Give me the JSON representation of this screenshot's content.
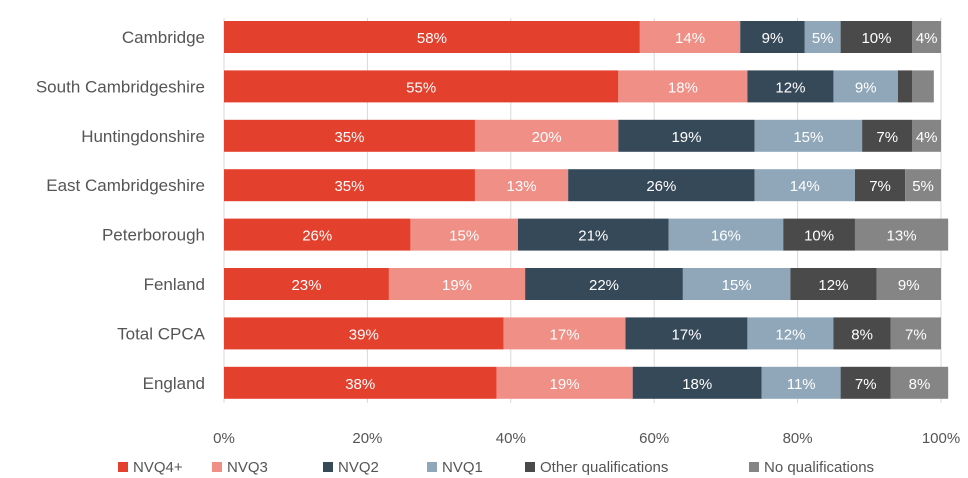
{
  "chart_data": {
    "type": "bar",
    "orientation": "horizontal",
    "stacked": true,
    "categories": [
      "Cambridge",
      "South Cambridgeshire",
      "Huntingdonshire",
      "East Cambridgeshire",
      "Peterborough",
      "Fenland",
      "Total CPCA",
      "England"
    ],
    "series": [
      {
        "name": "NVQ4+",
        "color": "#e4402e",
        "values": [
          58,
          55,
          35,
          35,
          26,
          23,
          39,
          38
        ],
        "labels": [
          "58%",
          "55%",
          "35%",
          "35%",
          "26%",
          "23%",
          "39%",
          "38%"
        ]
      },
      {
        "name": "NVQ3",
        "color": "#ef8f86",
        "values": [
          14,
          18,
          20,
          13,
          15,
          19,
          17,
          19
        ],
        "labels": [
          "14%",
          "18%",
          "20%",
          "13%",
          "15%",
          "19%",
          "17%",
          "19%"
        ]
      },
      {
        "name": "NVQ2",
        "color": "#364958",
        "values": [
          9,
          12,
          19,
          26,
          21,
          22,
          17,
          18
        ],
        "labels": [
          "9%",
          "12%",
          "19%",
          "26%",
          "21%",
          "22%",
          "17%",
          "18%"
        ]
      },
      {
        "name": "NVQ1",
        "color": "#8fa7b9",
        "values": [
          5,
          9,
          15,
          14,
          16,
          15,
          12,
          11
        ],
        "labels": [
          "5%",
          "9%",
          "15%",
          "14%",
          "16%",
          "15%",
          "12%",
          "11%"
        ]
      },
      {
        "name": "Other qualifications",
        "color": "#4a4a4a",
        "values": [
          10,
          2,
          7,
          7,
          10,
          12,
          8,
          7
        ],
        "labels": [
          "10%",
          "",
          "7%",
          "7%",
          "10%",
          "12%",
          "8%",
          "7%"
        ]
      },
      {
        "name": "No qualifications",
        "color": "#858585",
        "values": [
          4,
          3,
          4,
          5,
          13,
          9,
          7,
          8
        ],
        "labels": [
          "4%",
          "",
          "4%",
          "5%",
          "13%",
          "9%",
          "7%",
          "8%"
        ]
      }
    ],
    "xlim": [
      0,
      100
    ],
    "xticks": [
      "0%",
      "20%",
      "40%",
      "60%",
      "80%",
      "100%"
    ],
    "grid": true,
    "legend_position": "bottom"
  }
}
